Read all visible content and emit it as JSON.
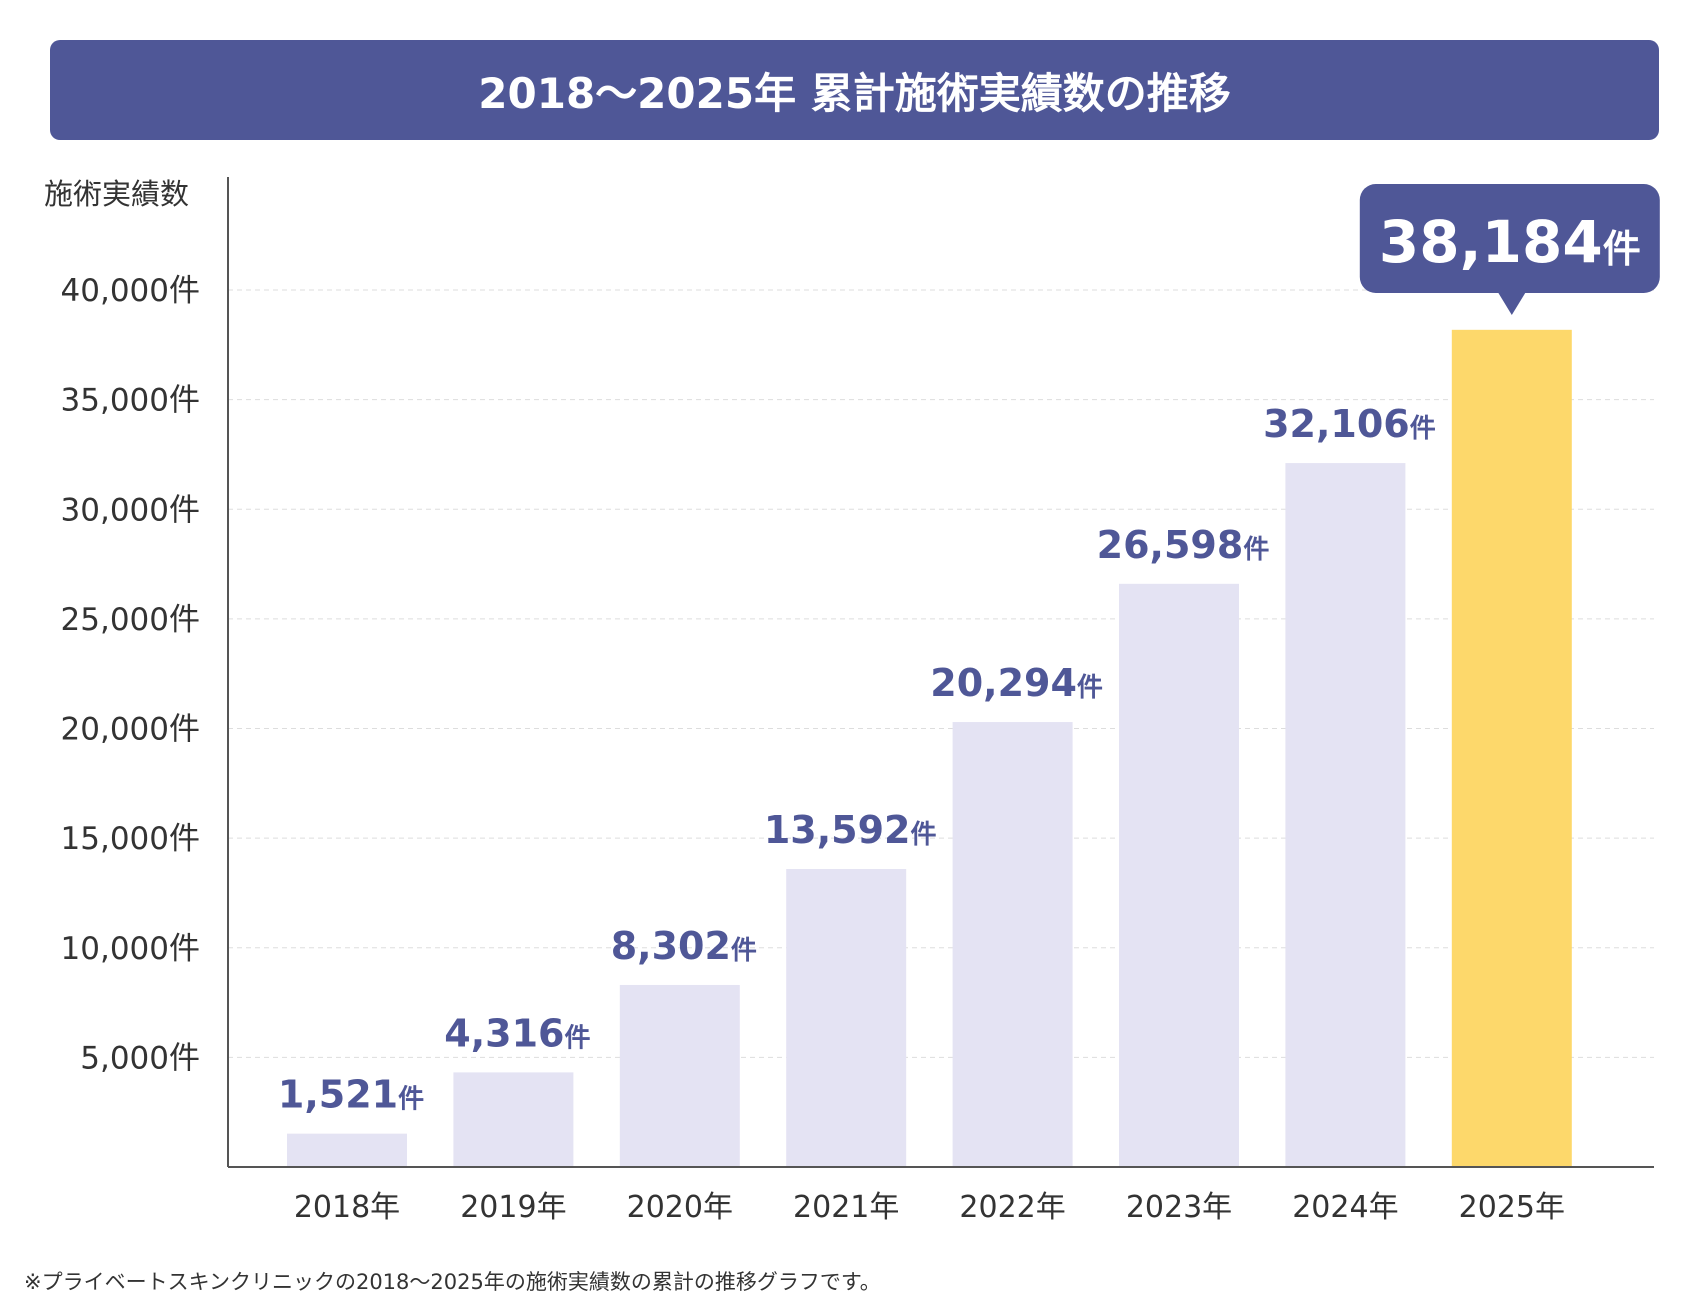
{
  "title": "2018〜2025年 累計施術実績数の推移",
  "footnote": "※プライベートスキンクリニックの2018〜2025年の施術実績数の累計の推移グラフです。",
  "colors": {
    "accent": "#4f5797",
    "bar": "#e4e3f3",
    "highlight": "#fdd86b",
    "grid": "#dddddd"
  },
  "chart_data": {
    "type": "bar",
    "title": "2018〜2025年 累計施術実績数の推移",
    "ylabel": "施術実績数",
    "xlabel": "",
    "categories": [
      "2018年",
      "2019年",
      "2020年",
      "2021年",
      "2022年",
      "2023年",
      "2024年",
      "2025年"
    ],
    "values": [
      1521,
      4316,
      8302,
      13592,
      20294,
      26598,
      32106,
      38184
    ],
    "data_labels": [
      "1,521",
      "4,316",
      "8,302",
      "13,592",
      "20,294",
      "26,598",
      "32,106",
      "38,184"
    ],
    "unit": "件",
    "highlight_index": 7,
    "ylim": [
      0,
      45000
    ],
    "yticks": [
      5000,
      10000,
      15000,
      20000,
      25000,
      30000,
      35000,
      40000
    ],
    "ytick_labels": [
      "5,000件",
      "10,000件",
      "15,000件",
      "20,000件",
      "25,000件",
      "30,000件",
      "35,000件",
      "40,000件"
    ],
    "grid": true,
    "grid_style": "dashed horizontal"
  }
}
